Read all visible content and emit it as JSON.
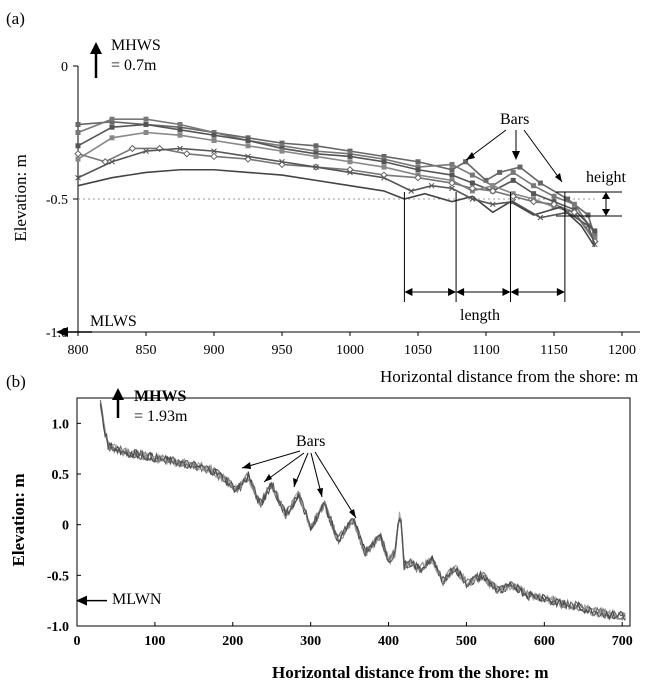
{
  "chart_data": [
    {
      "panel": "(a)",
      "type": "line",
      "xlabel": "Horizontal distance from the shore: m",
      "ylabel": "Elevation: m",
      "xlim": [
        800,
        1200
      ],
      "ylim": [
        -1.0,
        0
      ],
      "xticks": [
        800,
        850,
        900,
        950,
        1000,
        1050,
        1100,
        1150,
        1200
      ],
      "yticks": [
        0,
        -0.5,
        -1.0
      ],
      "ytick_labels": [
        "0",
        "-0.5",
        "-1.0"
      ],
      "reference_line": -0.5,
      "series": [
        {
          "x": [
            800,
            825,
            850,
            875,
            900,
            925,
            950,
            975,
            1000,
            1025,
            1050,
            1075,
            1085,
            1100,
            1110,
            1125,
            1140,
            1160,
            1175,
            1180
          ],
          "y": [
            -0.22,
            -0.21,
            -0.22,
            -0.23,
            -0.25,
            -0.27,
            -0.29,
            -0.3,
            -0.32,
            -0.34,
            -0.36,
            -0.39,
            -0.36,
            -0.43,
            -0.4,
            -0.38,
            -0.44,
            -0.5,
            -0.56,
            -0.64
          ]
        },
        {
          "x": [
            800,
            825,
            850,
            875,
            900,
            925,
            950,
            975,
            1000,
            1025,
            1050,
            1075,
            1090,
            1105,
            1120,
            1135,
            1150,
            1165,
            1180
          ],
          "y": [
            -0.25,
            -0.2,
            -0.2,
            -0.22,
            -0.25,
            -0.28,
            -0.3,
            -0.32,
            -0.33,
            -0.35,
            -0.38,
            -0.37,
            -0.41,
            -0.45,
            -0.4,
            -0.45,
            -0.49,
            -0.52,
            -0.63
          ]
        },
        {
          "x": [
            800,
            825,
            850,
            875,
            900,
            925,
            950,
            975,
            1000,
            1025,
            1050,
            1075,
            1090,
            1105,
            1120,
            1135,
            1150,
            1165,
            1180
          ],
          "y": [
            -0.3,
            -0.23,
            -0.22,
            -0.24,
            -0.26,
            -0.28,
            -0.31,
            -0.33,
            -0.34,
            -0.36,
            -0.39,
            -0.41,
            -0.44,
            -0.47,
            -0.43,
            -0.48,
            -0.51,
            -0.54,
            -0.62
          ]
        },
        {
          "x": [
            800,
            825,
            850,
            875,
            900,
            925,
            950,
            975,
            1000,
            1025,
            1050,
            1075,
            1090,
            1105,
            1120,
            1135,
            1150,
            1165,
            1180
          ],
          "y": [
            -0.35,
            -0.27,
            -0.25,
            -0.26,
            -0.28,
            -0.3,
            -0.32,
            -0.34,
            -0.36,
            -0.38,
            -0.41,
            -0.43,
            -0.47,
            -0.45,
            -0.48,
            -0.5,
            -0.53,
            -0.55,
            -0.65
          ]
        },
        {
          "x": [
            800,
            820,
            840,
            860,
            880,
            900,
            925,
            950,
            975,
            1000,
            1025,
            1050,
            1075,
            1090,
            1105,
            1120,
            1135,
            1150,
            1165,
            1180
          ],
          "y": [
            -0.33,
            -0.36,
            -0.31,
            -0.31,
            -0.33,
            -0.34,
            -0.35,
            -0.37,
            -0.38,
            -0.39,
            -0.41,
            -0.42,
            -0.44,
            -0.46,
            -0.47,
            -0.49,
            -0.51,
            -0.52,
            -0.55,
            -0.66
          ]
        },
        {
          "x": [
            800,
            825,
            850,
            875,
            900,
            925,
            950,
            975,
            1000,
            1025,
            1040,
            1055,
            1075,
            1090,
            1105,
            1118,
            1135,
            1155,
            1170,
            1180
          ],
          "y": [
            -0.45,
            -0.42,
            -0.4,
            -0.39,
            -0.39,
            -0.4,
            -0.41,
            -0.43,
            -0.45,
            -0.47,
            -0.5,
            -0.48,
            -0.51,
            -0.49,
            -0.55,
            -0.51,
            -0.56,
            -0.53,
            -0.6,
            -0.68
          ]
        },
        {
          "x": [
            800,
            825,
            850,
            875,
            900,
            925,
            950,
            975,
            1000,
            1025,
            1045,
            1060,
            1075,
            1090,
            1105,
            1120,
            1140,
            1160,
            1175,
            1180
          ],
          "y": [
            -0.42,
            -0.36,
            -0.32,
            -0.31,
            -0.32,
            -0.34,
            -0.36,
            -0.38,
            -0.4,
            -0.42,
            -0.47,
            -0.45,
            -0.46,
            -0.5,
            -0.52,
            -0.51,
            -0.57,
            -0.55,
            -0.6,
            -0.67
          ]
        }
      ],
      "annotations": {
        "mhws_label": "MHWS",
        "mhws_value": "= 0.7m",
        "mlws_label": "MLWS",
        "bars_label": "Bars",
        "height_label": "height",
        "length_label": "length",
        "length_marks_x": [
          1040,
          1078,
          1118,
          1158
        ]
      }
    },
    {
      "panel": "(b)",
      "type": "line",
      "xlabel": "Horizontal distance from the shore: m",
      "ylabel": "Elevation: m",
      "xlim": [
        0,
        710
      ],
      "ylim": [
        -1.0,
        1.25
      ],
      "xticks": [
        0,
        100,
        200,
        300,
        400,
        500,
        600,
        700
      ],
      "yticks": [
        1.0,
        0.5,
        0,
        -0.5,
        -1.0
      ],
      "ytick_labels": [
        "1.0",
        "0.5",
        "0",
        "-0.5",
        "-1.0"
      ],
      "series": [
        {
          "x": [
            30,
            35,
            40,
            60,
            100,
            140,
            170,
            190,
            205,
            220,
            235,
            250,
            268,
            285,
            300,
            318,
            335,
            355,
            370,
            390,
            400,
            408,
            415,
            420,
            430,
            440,
            455,
            470,
            485,
            500,
            520,
            540,
            560,
            580,
            600,
            620,
            640,
            660,
            680,
            700
          ],
          "y": [
            1.2,
            0.95,
            0.78,
            0.72,
            0.66,
            0.6,
            0.55,
            0.45,
            0.34,
            0.48,
            0.2,
            0.4,
            0.1,
            0.3,
            -0.02,
            0.2,
            -0.15,
            0.05,
            -0.28,
            -0.12,
            -0.36,
            -0.28,
            0.15,
            -0.4,
            -0.38,
            -0.44,
            -0.34,
            -0.55,
            -0.42,
            -0.58,
            -0.5,
            -0.65,
            -0.6,
            -0.7,
            -0.72,
            -0.78,
            -0.8,
            -0.85,
            -0.88,
            -0.9
          ]
        }
      ],
      "annotations": {
        "mhws_label": "MHWS",
        "mhws_value": "= 1.93m",
        "mlwn_label": "MLWN",
        "mlwn_value": -0.75,
        "bars_label": "Bars"
      }
    }
  ]
}
